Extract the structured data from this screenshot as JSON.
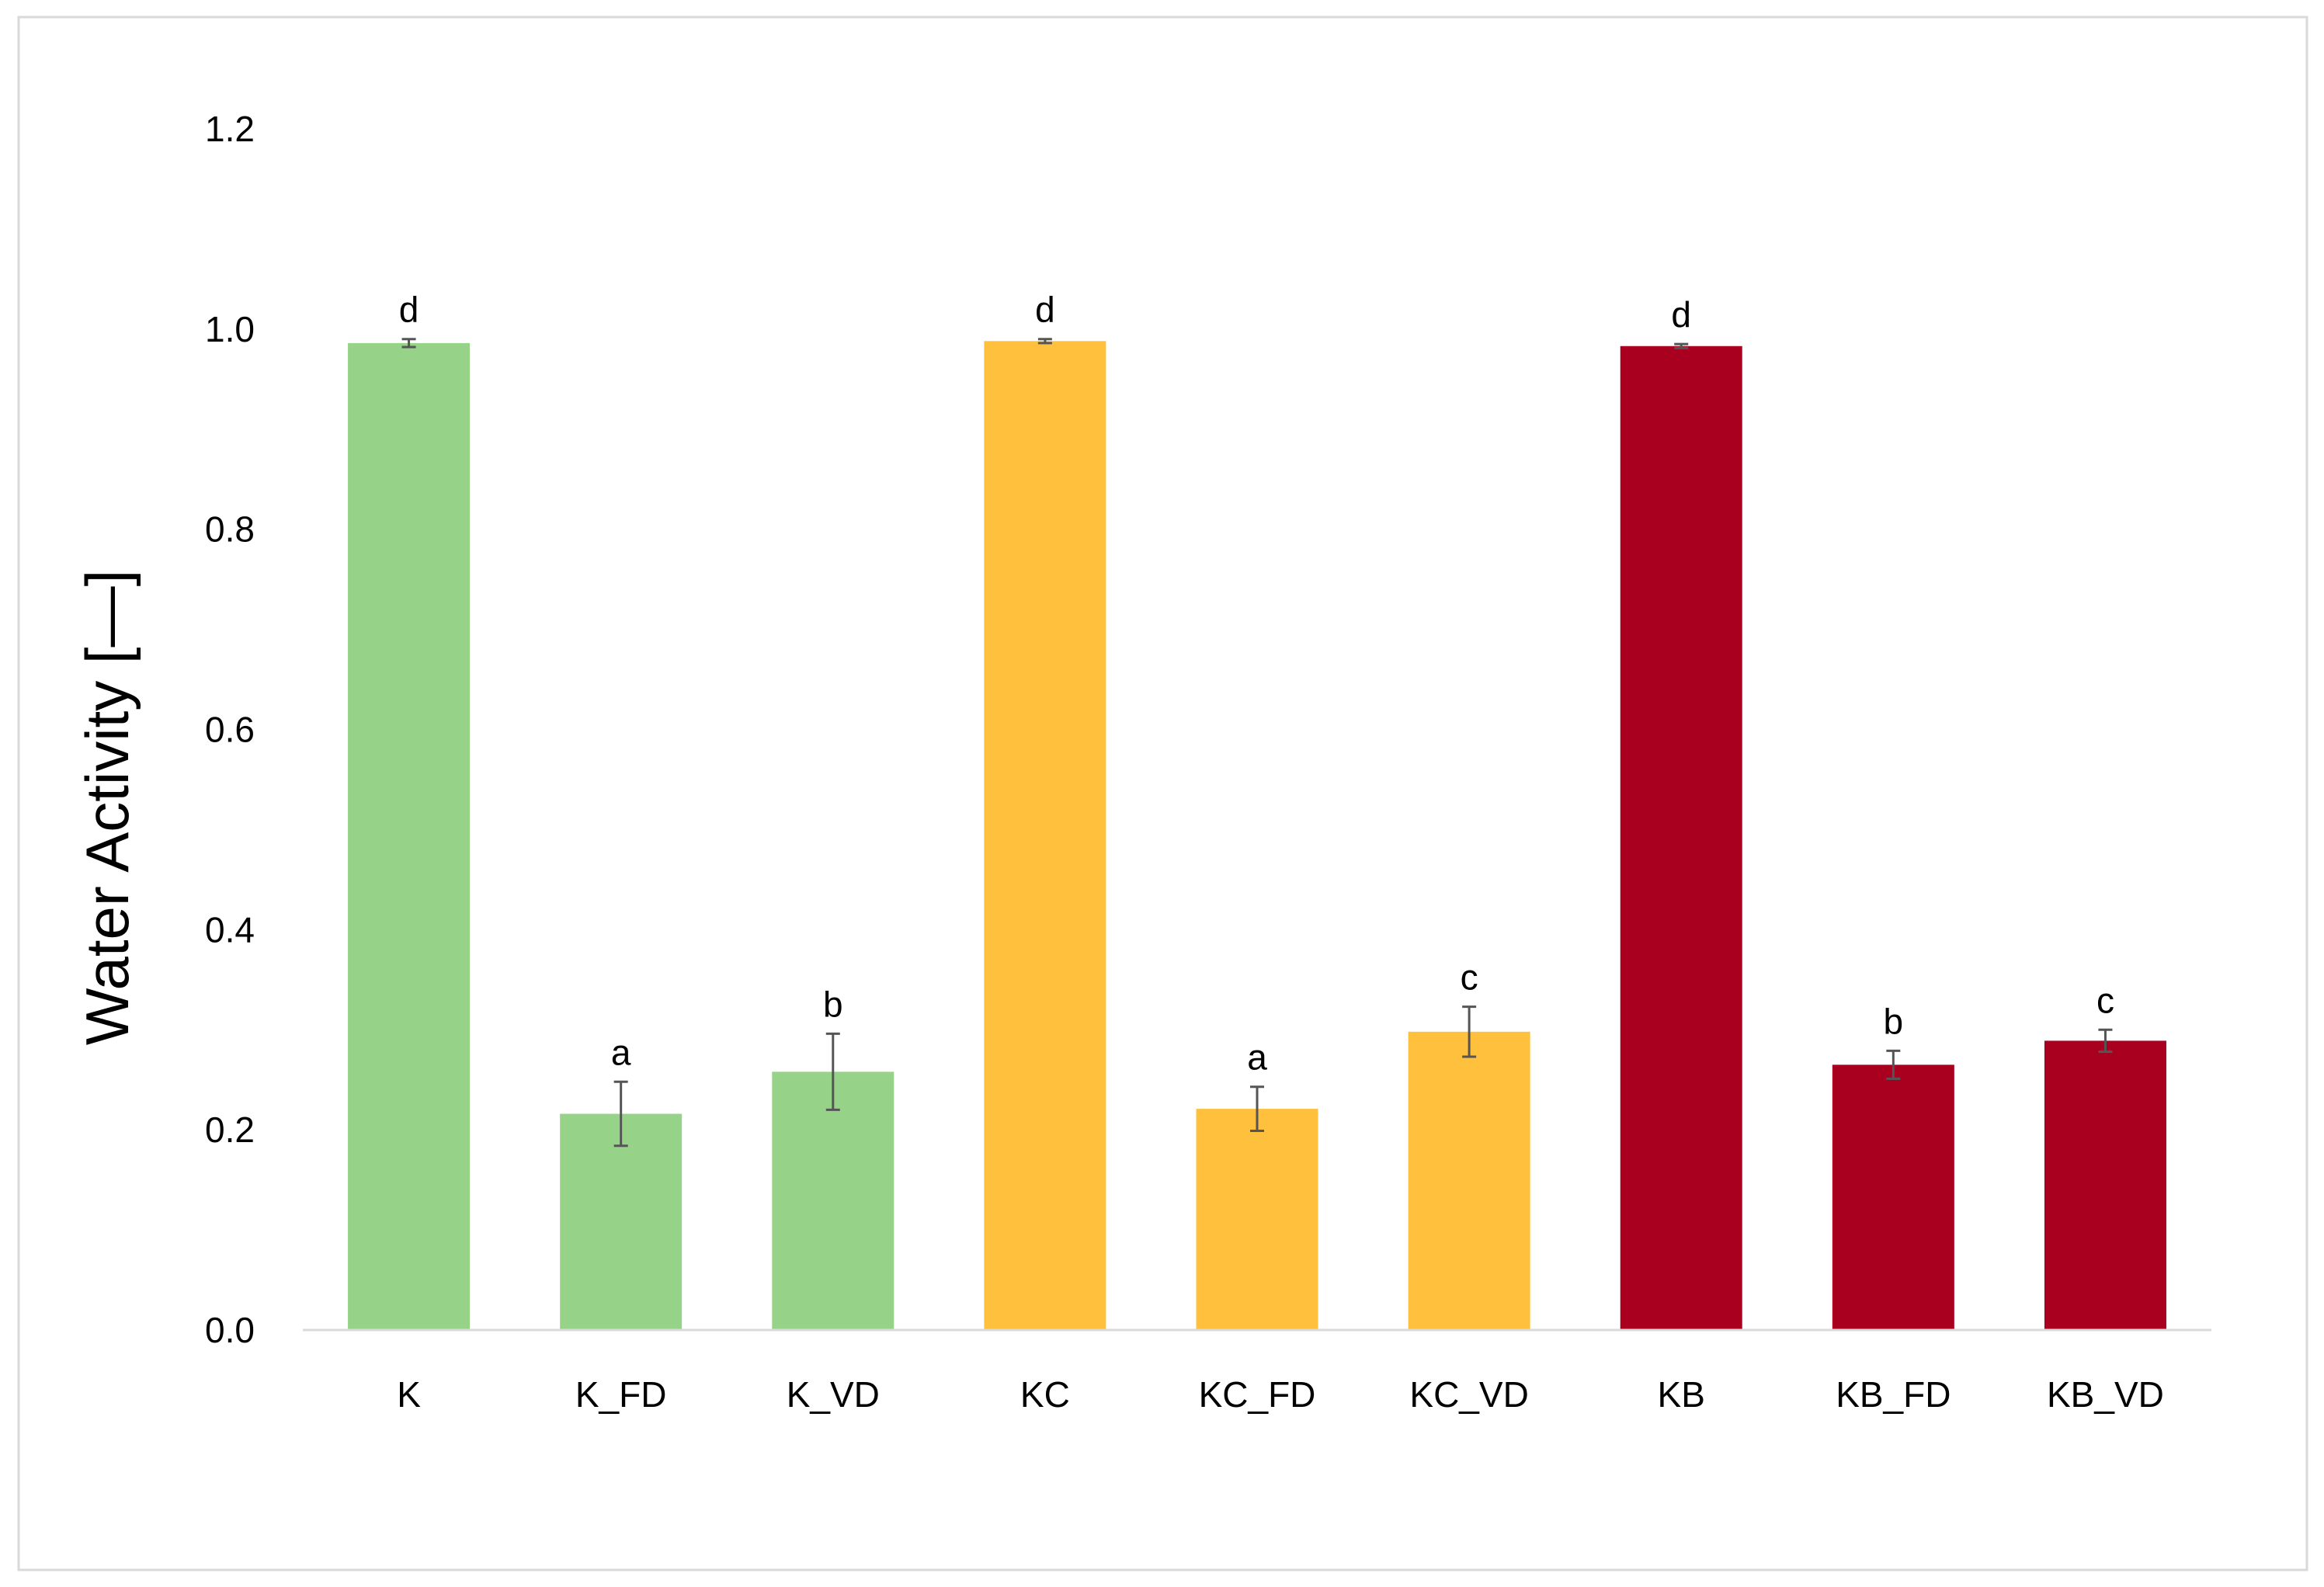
{
  "chart_data": {
    "type": "bar",
    "title": "",
    "xlabel": "",
    "ylabel": "Water Activity  [—]",
    "ylim": [
      0,
      1.2
    ],
    "yticks": [
      0.0,
      0.2,
      0.4,
      0.6,
      0.8,
      1.0,
      1.2
    ],
    "ytick_labels": [
      "0.0",
      "0.2",
      "0.4",
      "0.6",
      "0.8",
      "1.0",
      "1.2"
    ],
    "grid": false,
    "legend": "none",
    "categories": [
      "K",
      "K_FD",
      "K_VD",
      "KC",
      "KC_FD",
      "KC_VD",
      "KB",
      "KB_FD",
      "KB_VD"
    ],
    "values": [
      0.986,
      0.216,
      0.258,
      0.988,
      0.221,
      0.298,
      0.983,
      0.265,
      0.289
    ],
    "errors": [
      0.004,
      0.032,
      0.038,
      0.002,
      0.022,
      0.025,
      0.002,
      0.014,
      0.011
    ],
    "significance_labels": [
      "d",
      "a",
      "b",
      "d",
      "a",
      "c",
      "d",
      "b",
      "c"
    ],
    "bar_colors": [
      "#96d389",
      "#96d389",
      "#96d389",
      "#ffc03d",
      "#ffc03d",
      "#ffc03d",
      "#aa0020",
      "#aa0020",
      "#aa0020"
    ],
    "error_bar_color": "#555555",
    "axis_line_color": "#d9d9d9",
    "frame_border_color": "#d9d9d9"
  }
}
